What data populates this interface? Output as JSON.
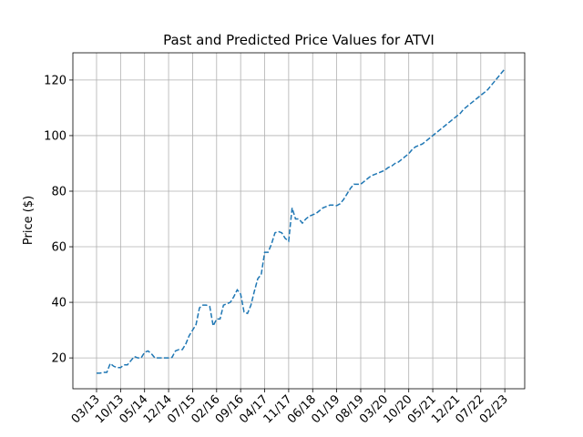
{
  "chart_data": {
    "type": "line",
    "title": "Past and Predicted Price Values for ATVI",
    "y_label": "Price ($)",
    "categories": [
      "03/13",
      null,
      null,
      null,
      null,
      null,
      null,
      "10/13",
      null,
      null,
      null,
      null,
      null,
      null,
      "05/14",
      null,
      null,
      null,
      null,
      null,
      null,
      "12/14",
      null,
      null,
      null,
      null,
      null,
      null,
      "07/15",
      null,
      null,
      null,
      null,
      null,
      null,
      "02/16",
      null,
      null,
      null,
      null,
      null,
      null,
      "09/16",
      null,
      null,
      null,
      null,
      null,
      null,
      "04/17",
      null,
      null,
      null,
      null,
      null,
      null,
      "11/17",
      null,
      null,
      null,
      null,
      null,
      null,
      "06/18",
      null,
      null,
      null,
      null,
      null,
      null,
      "01/19",
      null,
      null,
      null,
      null,
      null,
      null,
      "08/19",
      null,
      null,
      null,
      null,
      null,
      null,
      "03/20",
      null,
      null,
      null,
      null,
      null,
      null,
      "10/20",
      null,
      null,
      null,
      null,
      null,
      null,
      "05/21",
      null,
      null,
      null,
      null,
      null,
      null,
      "12/21",
      null,
      null,
      null,
      null,
      null,
      null,
      "07/22",
      null,
      null,
      null,
      null,
      null,
      null,
      "02/23"
    ],
    "series": [
      {
        "color": "#1f77b4",
        "values": [
          14.5,
          14.5,
          14.8,
          14.8,
          18,
          17,
          16.5,
          16.5,
          17.5,
          17.5,
          19,
          20.5,
          20,
          20,
          22,
          22.5,
          21.5,
          20,
          20,
          20,
          20,
          20,
          20.2,
          22.5,
          23,
          23,
          25,
          28,
          30,
          32,
          38,
          39,
          39,
          38.5,
          31.5,
          34,
          34,
          39,
          39.5,
          40,
          42,
          44.5,
          43,
          36.5,
          36,
          39,
          44,
          48.5,
          50,
          58,
          58,
          61,
          65,
          65.5,
          65,
          63,
          62,
          74,
          70,
          70,
          68.5,
          70,
          71,
          71.5,
          72,
          73,
          74,
          74.5,
          75,
          75,
          74.8,
          75.5,
          77,
          79,
          81,
          82.5,
          82.5,
          82.5,
          83.5,
          84.5,
          85.5,
          86,
          86.5,
          87,
          87.5,
          88.5,
          89,
          90,
          90.5,
          91.5,
          92.5,
          93.5,
          95,
          96,
          96.5,
          97,
          98,
          99,
          100,
          101,
          102,
          103,
          104,
          105,
          106,
          107,
          108,
          109.5,
          110.5,
          111.5,
          112.5,
          113.5,
          114.5,
          115.5,
          116.5,
          118,
          119.5,
          121,
          122.5,
          124
        ]
      }
    ],
    "xlim": [
      -6.9,
      124.8
    ],
    "ylim": [
      8.9,
      129.8
    ],
    "yticks": [
      20,
      40,
      60,
      80,
      100,
      120
    ],
    "grid": true
  }
}
